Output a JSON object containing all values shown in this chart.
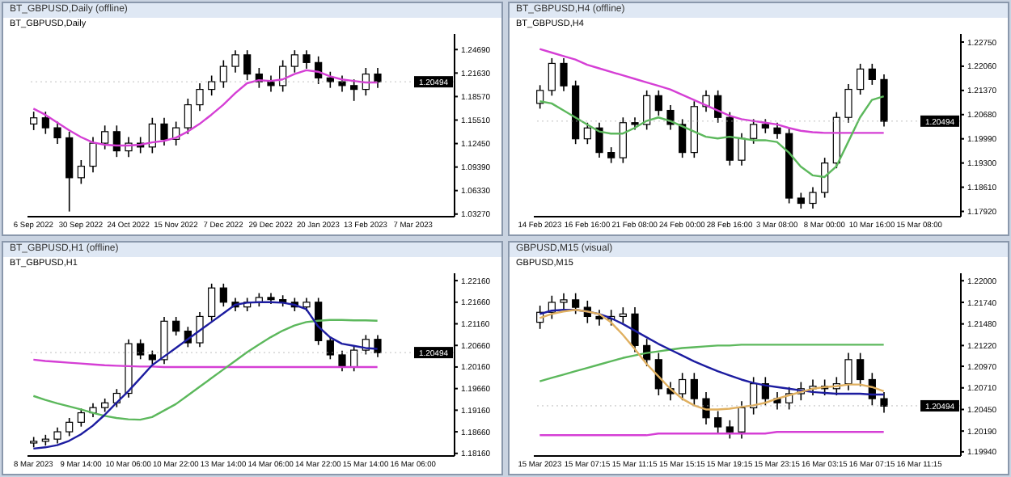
{
  "chart_data": [
    {
      "type": "candlestick",
      "title": "BT_GBPUSD,Daily (offline)",
      "subtitle": "BT_GBPUSD,Daily",
      "color": "#000000",
      "categories": [
        "6 Sep 2022",
        null,
        null,
        null,
        "30 Sep 2022",
        null,
        null,
        null,
        "24 Oct 2022",
        null,
        null,
        null,
        "15 Nov 2022",
        null,
        null,
        null,
        "7 Dec 2022",
        null,
        null,
        null,
        "29 Dec 2022",
        null,
        null,
        null,
        "20 Jan 2023",
        null,
        null,
        null,
        "13 Feb 2023",
        null,
        null,
        null,
        "7 Mar 2023",
        null,
        null,
        null
      ],
      "ohlc": [
        [
          1.15,
          1.166,
          1.142,
          1.158
        ],
        [
          1.158,
          1.166,
          1.137,
          1.145
        ],
        [
          1.145,
          1.153,
          1.124,
          1.132
        ],
        [
          1.132,
          1.14,
          1.036,
          1.08
        ],
        [
          1.08,
          1.103,
          1.072,
          1.095
        ],
        [
          1.095,
          1.133,
          1.087,
          1.125
        ],
        [
          1.125,
          1.148,
          1.117,
          1.14
        ],
        [
          1.14,
          1.148,
          1.107,
          1.115
        ],
        [
          1.115,
          1.133,
          1.107,
          1.125
        ],
        [
          1.125,
          1.133,
          1.112,
          1.12
        ],
        [
          1.12,
          1.158,
          1.112,
          1.15
        ],
        [
          1.15,
          1.158,
          1.122,
          1.13
        ],
        [
          1.13,
          1.153,
          1.122,
          1.145
        ],
        [
          1.145,
          1.183,
          1.137,
          1.175
        ],
        [
          1.175,
          1.203,
          1.167,
          1.195
        ],
        [
          1.195,
          1.213,
          1.187,
          1.205
        ],
        [
          1.205,
          1.233,
          1.197,
          1.225
        ],
        [
          1.225,
          1.246,
          1.217,
          1.24
        ],
        [
          1.24,
          1.246,
          1.207,
          1.215
        ],
        [
          1.215,
          1.223,
          1.197,
          1.205
        ],
        [
          1.205,
          1.213,
          1.192,
          1.2
        ],
        [
          1.2,
          1.233,
          1.192,
          1.225
        ],
        [
          1.225,
          1.246,
          1.217,
          1.24
        ],
        [
          1.24,
          1.246,
          1.222,
          1.23
        ],
        [
          1.23,
          1.238,
          1.202,
          1.21
        ],
        [
          1.21,
          1.218,
          1.197,
          1.205
        ],
        [
          1.205,
          1.213,
          1.192,
          1.2
        ],
        [
          1.2,
          1.208,
          1.18,
          1.195
        ],
        [
          1.195,
          1.223,
          1.187,
          1.215
        ],
        [
          1.215,
          1.223,
          1.197,
          1.2049
        ],
        null,
        null,
        null,
        null,
        null,
        null
      ],
      "series": [
        {
          "type": "line",
          "color": "#d53fd5",
          "values": [
            1.17,
            1.162,
            1.152,
            1.142,
            1.133,
            1.126,
            1.123,
            1.122,
            1.122,
            1.123,
            1.126,
            1.128,
            1.132,
            1.14,
            1.15,
            1.162,
            1.175,
            1.19,
            1.203,
            1.207,
            1.206,
            1.208,
            1.215,
            1.22,
            1.218,
            1.212,
            1.208,
            1.206,
            1.204,
            1.204,
            null,
            null,
            null,
            null,
            null,
            null
          ]
        }
      ],
      "ylim": [
        1.0293,
        1.2672
      ],
      "yticks": [
        {
          "value": 1.2469,
          "label": "1.24690"
        },
        {
          "value": 1.2163,
          "label": "1.21630"
        },
        {
          "value": 1.1857,
          "label": "1.18570"
        },
        {
          "value": 1.1551,
          "label": "1.15510"
        },
        {
          "value": 1.1245,
          "label": "1.12450"
        },
        {
          "value": 1.0939,
          "label": "1.09390"
        },
        {
          "value": 1.0633,
          "label": "1.06330"
        },
        {
          "value": 1.0327,
          "label": "1.03270"
        }
      ],
      "ref_lines": [
        {
          "axis": "y",
          "value": 1.20494,
          "label": "1.20494"
        }
      ]
    },
    {
      "type": "candlestick",
      "title": "BT_GBPUSD,H4 (offline)",
      "subtitle": "BT_GBPUSD,H4",
      "color": "#000000",
      "categories": [
        "14 Feb 2023",
        null,
        null,
        null,
        "16 Feb 16:00",
        null,
        null,
        null,
        "21 Feb 08:00",
        null,
        null,
        null,
        "24 Feb 00:00",
        null,
        null,
        null,
        "28 Feb 16:00",
        null,
        null,
        null,
        "3 Mar 08:00",
        null,
        null,
        null,
        "8 Mar 00:00",
        null,
        null,
        null,
        "10 Mar 16:00",
        null,
        null,
        null,
        "15 Mar 08:00",
        null,
        null,
        null
      ],
      "ohlc": [
        [
          1.21,
          1.2152,
          1.2085,
          1.2137
        ],
        [
          1.2137,
          1.2229,
          1.2122,
          1.2214
        ],
        [
          1.2214,
          1.2229,
          1.2135,
          1.215
        ],
        [
          1.215,
          1.2165,
          1.1984,
          1.1999
        ],
        [
          1.1999,
          1.2045,
          1.1984,
          1.203
        ],
        [
          1.203,
          1.2045,
          1.1945,
          1.196
        ],
        [
          1.196,
          1.1975,
          1.193,
          1.1945
        ],
        [
          1.1945,
          1.206,
          1.193,
          1.2045
        ],
        [
          1.2045,
          1.206,
          1.2025,
          1.204
        ],
        [
          1.204,
          1.2137,
          1.2025,
          1.2122
        ],
        [
          1.2122,
          1.2137,
          1.2065,
          1.208
        ],
        [
          1.208,
          1.2095,
          1.2025,
          1.204
        ],
        [
          1.204,
          1.2055,
          1.1945,
          1.196
        ],
        [
          1.196,
          1.2106,
          1.1945,
          1.2091
        ],
        [
          1.2091,
          1.2137,
          1.2076,
          1.2122
        ],
        [
          1.2122,
          1.2137,
          1.2045,
          1.206
        ],
        [
          1.206,
          1.2075,
          1.1923,
          1.1938
        ],
        [
          1.1938,
          1.2015,
          1.1923,
          1.2
        ],
        [
          1.2,
          1.2055,
          1.1985,
          1.204
        ],
        [
          1.204,
          1.2055,
          1.2015,
          1.203
        ],
        [
          1.203,
          1.2045,
          1.1999,
          1.2014
        ],
        [
          1.2014,
          1.2029,
          1.1815,
          1.183
        ],
        [
          1.183,
          1.1845,
          1.18,
          1.1815
        ],
        [
          1.1815,
          1.1861,
          1.18,
          1.1846
        ],
        [
          1.1846,
          1.1945,
          1.1831,
          1.193
        ],
        [
          1.193,
          1.2075,
          1.1915,
          1.206
        ],
        [
          1.206,
          1.2155,
          1.2045,
          1.214
        ],
        [
          1.214,
          1.2213,
          1.2125,
          1.2198
        ],
        [
          1.2198,
          1.2213,
          1.2153,
          1.2168
        ],
        [
          1.2168,
          1.2183,
          1.2034,
          1.2049
        ],
        null,
        null,
        null,
        null,
        null,
        null
      ],
      "series": [
        {
          "type": "line",
          "color": "#d53fd5",
          "values": [
            1.2255,
            1.2245,
            1.2235,
            1.2225,
            1.221,
            1.22,
            1.219,
            1.218,
            1.217,
            1.216,
            1.215,
            1.214,
            1.2125,
            1.211,
            1.2095,
            1.208,
            1.2065,
            1.2055,
            1.205,
            1.2045,
            1.204,
            1.203,
            1.2022,
            1.2018,
            1.2016,
            1.2016,
            1.2016,
            1.2016,
            1.2016,
            1.2016,
            null,
            null,
            null,
            null,
            null,
            null
          ]
        },
        {
          "type": "line",
          "color": "#5cb85c",
          "values": [
            1.2106,
            1.21,
            1.208,
            1.206,
            1.204,
            1.202,
            1.2014,
            1.2014,
            1.203,
            1.205,
            1.206,
            1.205,
            1.2035,
            1.202,
            1.2005,
            1.2,
            1.2005,
            1.2,
            1.1995,
            1.1995,
            1.199,
            1.196,
            1.192,
            1.1895,
            1.189,
            1.192,
            1.199,
            1.206,
            1.211,
            1.212,
            null,
            null,
            null,
            null,
            null,
            null
          ]
        }
      ],
      "ylim": [
        1.1777,
        1.2298
      ],
      "yticks": [
        {
          "value": 1.2275,
          "label": "1.22750"
        },
        {
          "value": 1.2206,
          "label": "1.22060"
        },
        {
          "value": 1.2137,
          "label": "1.21370"
        },
        {
          "value": 1.2068,
          "label": "1.20680"
        },
        {
          "value": 1.1999,
          "label": "1.19990"
        },
        {
          "value": 1.193,
          "label": "1.19300"
        },
        {
          "value": 1.1861,
          "label": "1.18610"
        },
        {
          "value": 1.1792,
          "label": "1.17920"
        }
      ],
      "ref_lines": [
        {
          "axis": "y",
          "value": 1.20494,
          "label": "1.20494"
        }
      ]
    },
    {
      "type": "candlestick",
      "title": "BT_GBPUSD,H1 (offline)",
      "subtitle": "BT_GBPUSD,H1",
      "color": "#000000",
      "categories": [
        "8 Mar 2023",
        null,
        null,
        null,
        "9 Mar 14:00",
        null,
        null,
        null,
        "10 Mar 06:00",
        null,
        null,
        null,
        "10 Mar 22:00",
        null,
        null,
        null,
        "13 Mar 14:00",
        null,
        null,
        null,
        "14 Mar 06:00",
        null,
        null,
        null,
        "14 Mar 22:00",
        null,
        null,
        null,
        "15 Mar 14:00",
        null,
        null,
        null,
        "16 Mar 06:00",
        null,
        null,
        null
      ],
      "ohlc": [
        [
          1.184,
          1.1854,
          1.183,
          1.1844
        ],
        [
          1.1844,
          1.1859,
          1.1834,
          1.1849
        ],
        [
          1.1849,
          1.1876,
          1.1839,
          1.1866
        ],
        [
          1.1866,
          1.1898,
          1.1856,
          1.1888
        ],
        [
          1.1888,
          1.192,
          1.1878,
          1.191
        ],
        [
          1.191,
          1.1932,
          1.19,
          1.1922
        ],
        [
          1.1922,
          1.1943,
          1.1912,
          1.1933
        ],
        [
          1.1933,
          1.1965,
          1.1923,
          1.1955
        ],
        [
          1.1955,
          1.208,
          1.1945,
          1.207
        ],
        [
          1.207,
          1.208,
          1.2034,
          1.2044
        ],
        [
          1.2044,
          1.2054,
          1.2023,
          1.2033
        ],
        [
          1.2033,
          1.2132,
          1.2023,
          1.2122
        ],
        [
          1.2122,
          1.2132,
          1.2089,
          1.2099
        ],
        [
          1.2099,
          1.2109,
          1.2062,
          1.2072
        ],
        [
          1.2072,
          1.2143,
          1.2062,
          1.2133
        ],
        [
          1.2133,
          1.2209,
          1.2123,
          1.2199
        ],
        [
          1.2199,
          1.2209,
          1.2156,
          1.2166
        ],
        [
          1.2166,
          1.2176,
          1.2145,
          1.2155
        ],
        [
          1.2155,
          1.2176,
          1.2145,
          1.2166
        ],
        [
          1.2166,
          1.2187,
          1.2156,
          1.2177
        ],
        [
          1.2177,
          1.2187,
          1.2162,
          1.2172
        ],
        [
          1.2172,
          1.2182,
          1.2156,
          1.2166
        ],
        [
          1.2166,
          1.2176,
          1.2145,
          1.2155
        ],
        [
          1.2155,
          1.2176,
          1.2145,
          1.2166
        ],
        [
          1.2166,
          1.2176,
          1.2067,
          1.2077
        ],
        [
          1.2077,
          1.2087,
          1.2034,
          1.2044
        ],
        [
          1.2044,
          1.2054,
          1.2006,
          1.2016
        ],
        [
          1.2016,
          1.2065,
          1.2006,
          1.2055
        ],
        [
          1.2055,
          1.209,
          1.2045,
          1.208
        ],
        [
          1.208,
          1.209,
          1.2039,
          1.2049
        ],
        null,
        null,
        null,
        null,
        null,
        null
      ],
      "series": [
        {
          "type": "line",
          "color": "#d53fd5",
          "values": [
            1.2033,
            1.203,
            1.2028,
            1.2026,
            1.2024,
            1.2022,
            1.202,
            1.2019,
            1.2018,
            1.2017,
            1.2017,
            1.2016,
            1.2016,
            1.2016,
            1.2016,
            1.2016,
            1.2016,
            1.2016,
            1.2016,
            1.2016,
            1.2016,
            1.2016,
            1.2016,
            1.2016,
            1.2016,
            1.2016,
            1.2016,
            1.2016,
            1.2016,
            1.2016,
            null,
            null,
            null,
            null,
            null,
            null
          ]
        },
        {
          "type": "line",
          "color": "#5cb85c",
          "values": [
            1.1949,
            1.194,
            1.1932,
            1.1925,
            1.1918,
            1.191,
            1.1903,
            1.1898,
            1.1895,
            1.1894,
            1.19,
            1.1915,
            1.193,
            1.195,
            1.197,
            1.199,
            1.201,
            1.203,
            1.205,
            1.2068,
            1.2085,
            1.21,
            1.2112,
            1.212,
            1.2123,
            1.2125,
            1.2125,
            1.2124,
            1.2124,
            1.2123,
            null,
            null,
            null,
            null,
            null,
            null
          ]
        },
        {
          "type": "line",
          "color": "#1c1ca0",
          "values": [
            1.1827,
            1.183,
            1.1835,
            1.1845,
            1.186,
            1.188,
            1.1905,
            1.1933,
            1.196,
            1.199,
            1.202,
            1.204,
            1.206,
            1.208,
            1.21,
            1.212,
            1.214,
            1.216,
            1.2165,
            1.2166,
            1.2166,
            1.2165,
            1.216,
            1.215,
            1.211,
            1.2085,
            1.207,
            1.2065,
            1.206,
            1.2058,
            null,
            null,
            null,
            null,
            null,
            null
          ]
        }
      ],
      "ylim": [
        1.181,
        1.2233
      ],
      "yticks": [
        {
          "value": 1.2216,
          "label": "1.22160"
        },
        {
          "value": 1.2166,
          "label": "1.21660"
        },
        {
          "value": 1.2116,
          "label": "1.21160"
        },
        {
          "value": 1.2066,
          "label": "1.20660"
        },
        {
          "value": 1.2016,
          "label": "1.20160"
        },
        {
          "value": 1.1966,
          "label": "1.19660"
        },
        {
          "value": 1.1916,
          "label": "1.19160"
        },
        {
          "value": 1.1866,
          "label": "1.18660"
        },
        {
          "value": 1.1816,
          "label": "1.18160"
        }
      ],
      "ref_lines": [
        {
          "axis": "y",
          "value": 1.20494,
          "label": "1.20494"
        }
      ]
    },
    {
      "type": "candlestick",
      "title": "GBPUSD,M15 (visual)",
      "subtitle": "GBPUSD,M15",
      "color": "#000000",
      "categories": [
        "15 Mar 2023",
        null,
        null,
        null,
        "15 Mar 07:15",
        null,
        null,
        null,
        "15 Mar 11:15",
        null,
        null,
        null,
        "15 Mar 15:15",
        null,
        null,
        null,
        "15 Mar 19:15",
        null,
        null,
        null,
        "15 Mar 23:15",
        null,
        null,
        null,
        "16 Mar 03:15",
        null,
        null,
        null,
        "16 Mar 07:15",
        null,
        null,
        null,
        "16 Mar 11:15",
        null,
        null,
        null
      ],
      "ohlc": [
        [
          1.215,
          1.217,
          1.2142,
          1.2162
        ],
        [
          1.2162,
          1.2182,
          1.2154,
          1.2174
        ],
        [
          1.2174,
          1.2185,
          1.2166,
          1.2177
        ],
        [
          1.2177,
          1.2185,
          1.216,
          1.2168
        ],
        [
          1.2168,
          1.2176,
          1.2149,
          1.2157
        ],
        [
          1.2157,
          1.2165,
          1.2146,
          1.2154
        ],
        [
          1.2154,
          1.2165,
          1.2146,
          1.2157
        ],
        [
          1.2157,
          1.2168,
          1.2149,
          1.216
        ],
        [
          1.216,
          1.2168,
          1.2114,
          1.2122
        ],
        [
          1.2122,
          1.213,
          1.2097,
          1.2105
        ],
        [
          1.2105,
          1.2113,
          1.2062,
          1.207
        ],
        [
          1.207,
          1.2078,
          1.2056,
          1.2064
        ],
        [
          1.2064,
          1.2089,
          1.2056,
          1.2081
        ],
        [
          1.2081,
          1.2089,
          1.205,
          1.2058
        ],
        [
          1.2058,
          1.2066,
          1.2027,
          1.2035
        ],
        [
          1.2035,
          1.2043,
          1.2016,
          1.2024
        ],
        [
          1.2024,
          1.2032,
          1.201,
          1.2018
        ],
        [
          1.2018,
          1.2055,
          1.201,
          1.2047
        ],
        [
          1.2047,
          1.2084,
          1.2039,
          1.2076
        ],
        [
          1.2076,
          1.2084,
          1.205,
          1.2058
        ],
        [
          1.2058,
          1.2066,
          1.2045,
          1.2053
        ],
        [
          1.2053,
          1.2072,
          1.2045,
          1.2064
        ],
        [
          1.2064,
          1.2078,
          1.2056,
          1.207
        ],
        [
          1.207,
          1.2081,
          1.2062,
          1.2073
        ],
        [
          1.2073,
          1.2081,
          1.2062,
          1.207
        ],
        [
          1.207,
          1.2084,
          1.2062,
          1.2076
        ],
        [
          1.2076,
          1.2113,
          1.2068,
          1.2105
        ],
        [
          1.2105,
          1.2113,
          1.2073,
          1.2081
        ],
        [
          1.2081,
          1.2089,
          1.205,
          1.2058
        ],
        [
          1.2058,
          1.2066,
          1.2041,
          1.2049
        ],
        null,
        null,
        null,
        null,
        null,
        null
      ],
      "series": [
        {
          "type": "line",
          "color": "#d53fd5",
          "values": [
            1.2014,
            1.2014,
            1.2014,
            1.2014,
            1.2014,
            1.2014,
            1.2014,
            1.2014,
            1.2014,
            1.2014,
            1.2016,
            1.2016,
            1.2016,
            1.2016,
            1.2016,
            1.2016,
            1.2016,
            1.2016,
            1.2016,
            1.2016,
            1.2018,
            1.2018,
            1.2018,
            1.2018,
            1.2018,
            1.2018,
            1.2018,
            1.2018,
            1.2018,
            1.2018,
            null,
            null,
            null,
            null,
            null,
            null
          ]
        },
        {
          "type": "line",
          "color": "#5cb85c",
          "values": [
            1.2079,
            1.2083,
            1.2087,
            1.2091,
            1.2095,
            1.2099,
            1.2103,
            1.2107,
            1.211,
            1.2113,
            1.2115,
            1.2117,
            1.2119,
            1.212,
            1.2121,
            1.2122,
            1.2122,
            1.2123,
            1.2123,
            1.2123,
            1.2123,
            1.2123,
            1.2123,
            1.2123,
            1.2123,
            1.2123,
            1.2123,
            1.2123,
            1.2123,
            1.2123,
            null,
            null,
            null,
            null,
            null,
            null
          ]
        },
        {
          "type": "line",
          "color": "#1c1ca0",
          "values": [
            1.216,
            1.2164,
            1.2165,
            1.2165,
            1.2163,
            1.216,
            1.2155,
            1.2148,
            1.214,
            1.2132,
            1.2124,
            1.2117,
            1.211,
            1.2103,
            1.2097,
            1.2091,
            1.2086,
            1.2081,
            1.2077,
            1.2074,
            1.2072,
            1.207,
            1.2068,
            1.2066,
            1.2065,
            1.2064,
            1.2064,
            1.2064,
            1.2063,
            1.2063,
            null,
            null,
            null,
            null,
            null,
            null
          ]
        },
        {
          "type": "line",
          "color": "#e0b060",
          "values": [
            1.2155,
            1.216,
            1.2163,
            1.2165,
            1.2163,
            1.216,
            1.215,
            1.2135,
            1.2118,
            1.21,
            1.2085,
            1.207,
            1.2058,
            1.205,
            1.2045,
            1.2045,
            1.2046,
            1.2048,
            1.205,
            1.2053,
            1.2058,
            1.2062,
            1.2066,
            1.207,
            1.2072,
            1.2073,
            1.2075,
            1.2075,
            1.2072,
            1.2067,
            null,
            null,
            null,
            null,
            null,
            null
          ]
        }
      ],
      "ylim": [
        1.1989,
        1.2209
      ],
      "yticks": [
        {
          "value": 1.22,
          "label": "1.22000"
        },
        {
          "value": 1.2174,
          "label": "1.21740"
        },
        {
          "value": 1.2148,
          "label": "1.21480"
        },
        {
          "value": 1.2122,
          "label": "1.21220"
        },
        {
          "value": 1.2097,
          "label": "1.20970"
        },
        {
          "value": 1.2071,
          "label": "1.20710"
        },
        {
          "value": 1.2045,
          "label": "1.20450"
        },
        {
          "value": 1.2019,
          "label": "1.20190"
        },
        {
          "value": 1.1994,
          "label": "1.19940"
        }
      ],
      "ref_lines": [
        {
          "axis": "y",
          "value": 1.20494,
          "label": "1.20494"
        }
      ]
    }
  ]
}
